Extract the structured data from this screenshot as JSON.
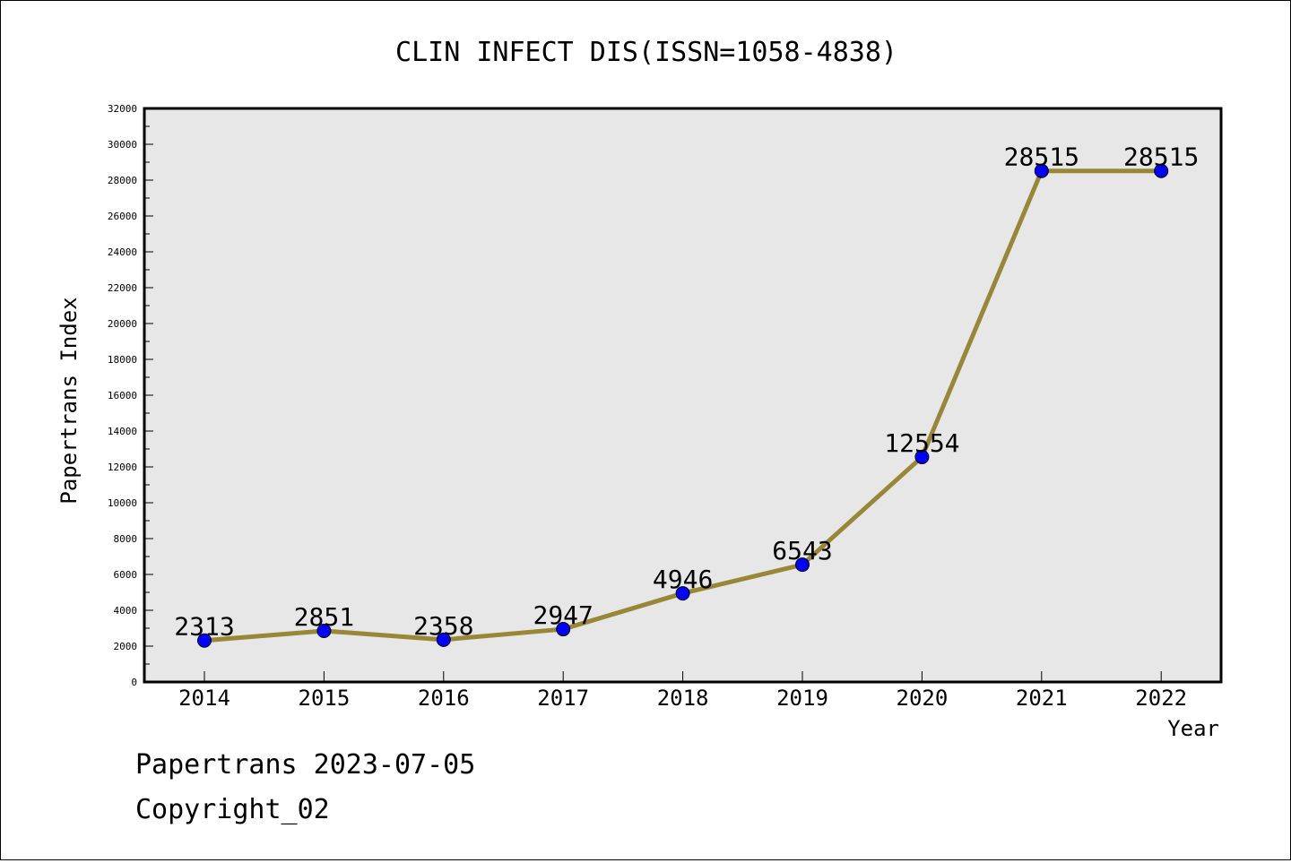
{
  "chart_data": {
    "type": "line",
    "title": "CLIN INFECT DIS(ISSN=1058-4838)",
    "xlabel": "Year",
    "ylabel": "Papertrans Index",
    "categories": [
      "2014",
      "2015",
      "2016",
      "2017",
      "2018",
      "2019",
      "2020",
      "2021",
      "2022"
    ],
    "series": [
      {
        "values": [
          2313,
          2851,
          2358,
          2947,
          4946,
          6543,
          12554,
          28515,
          28515
        ]
      }
    ],
    "data_labels": [
      "2313",
      "2851",
      "2358",
      "2947",
      "4946",
      "6543",
      "12554",
      "28515",
      "28515"
    ],
    "ylim": [
      0,
      32000
    ],
    "yticks": [
      "0",
      "2000",
      "4000",
      "6000",
      "8000",
      "10000",
      "12000",
      "14000",
      "16000",
      "18000",
      "20000",
      "22000",
      "24000",
      "26000",
      "28000",
      "30000",
      "32000"
    ],
    "grid": false,
    "legend": "none",
    "colors": {
      "line": "#998738",
      "marker": "#0000ff",
      "plot_background": "#e7e7e7"
    }
  },
  "footer": {
    "line1": "Papertrans 2023-07-05",
    "line2": "Copyright_02"
  }
}
